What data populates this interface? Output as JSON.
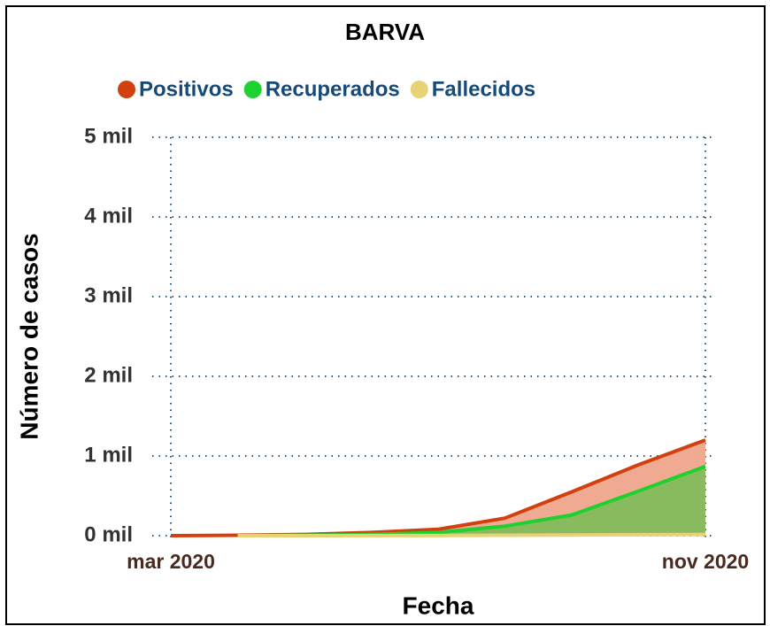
{
  "chart_data": {
    "type": "area",
    "title": "BARVA",
    "x": [
      "2020-03",
      "2020-04",
      "2020-05",
      "2020-06",
      "2020-07",
      "2020-08",
      "2020-09",
      "2020-10",
      "2020-11"
    ],
    "series": [
      {
        "name": "Positivos",
        "color": "#d2400f",
        "fill": "#f0aa92",
        "values": [
          0,
          5,
          15,
          40,
          80,
          220,
          550,
          890,
          1200
        ]
      },
      {
        "name": "Recuperados",
        "color": "#1fd12f",
        "fill": "#88bb5e",
        "values": [
          null,
          0,
          5,
          15,
          40,
          120,
          260,
          560,
          870
        ]
      },
      {
        "name": "Fallecidos",
        "color": "#e8d276",
        "fill": "none",
        "values": [
          null,
          0,
          0,
          1,
          2,
          5,
          9,
          12,
          15
        ]
      }
    ],
    "xticks": [
      {
        "value": "2020-03",
        "label": "mar 2020"
      },
      {
        "value": "2020-11",
        "label": "nov 2020"
      }
    ],
    "ylim": [
      0,
      5000
    ],
    "yticks": [
      {
        "value": 0,
        "label": "0 mil"
      },
      {
        "value": 1000,
        "label": "1 mil"
      },
      {
        "value": 2000,
        "label": "2 mil"
      },
      {
        "value": 3000,
        "label": "3 mil"
      },
      {
        "value": 4000,
        "label": "4 mil"
      },
      {
        "value": 5000,
        "label": "5 mil"
      }
    ],
    "xlabel": "Fecha",
    "ylabel": "Número de casos",
    "grid": true,
    "legend": "top"
  }
}
